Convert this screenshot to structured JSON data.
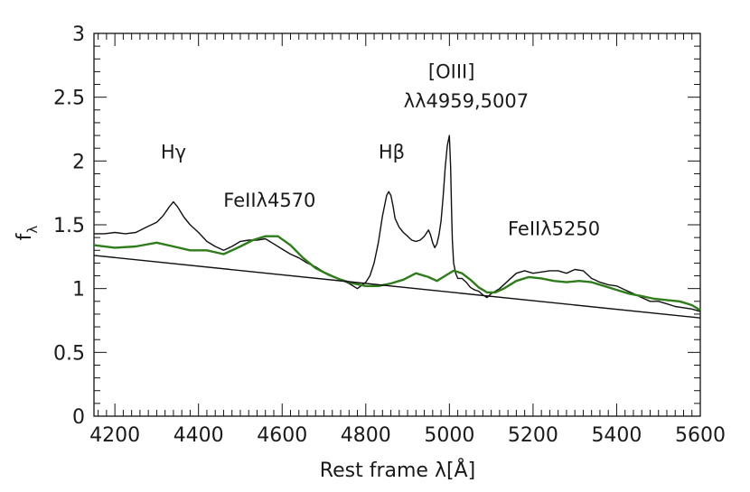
{
  "chart_data": {
    "type": "line",
    "xlabel": "Rest frame λ[Å]",
    "ylabel": "f",
    "ylabel_sub": "λ",
    "xlim": [
      4150,
      5600
    ],
    "ylim": [
      0,
      3
    ],
    "x_ticks": [
      4200,
      4400,
      4600,
      4800,
      5000,
      5200,
      5400,
      5600
    ],
    "y_ticks": [
      0,
      0.5,
      1,
      1.5,
      2,
      2.5,
      3
    ],
    "y_tick_labels": [
      "0",
      "0.5",
      "1",
      "1.5",
      "2",
      "2.5",
      "3"
    ],
    "grid": false,
    "annotations": [
      {
        "text": "Hγ",
        "x": 4340,
        "y": 2.02
      },
      {
        "text": "FeIIλ4570",
        "x": 4570,
        "y": 1.64
      },
      {
        "text": "Hβ",
        "x": 4862,
        "y": 2.02
      },
      {
        "text": "[OIII]",
        "x": 5005,
        "y": 2.65
      },
      {
        "text": "λλ4959,5007",
        "x": 5040,
        "y": 2.42
      },
      {
        "text": "FeIIλ5250",
        "x": 5250,
        "y": 1.42
      }
    ],
    "series": [
      {
        "color": "#111111",
        "x": [
          4150,
          4175,
          4200,
          4225,
          4250,
          4275,
          4300,
          4315,
          4330,
          4340,
          4350,
          4365,
          4380,
          4400,
          4420,
          4440,
          4460,
          4480,
          4500,
          4520,
          4540,
          4560,
          4580,
          4600,
          4620,
          4640,
          4660,
          4680,
          4700,
          4720,
          4740,
          4760,
          4780,
          4800,
          4810,
          4820,
          4830,
          4840,
          4850,
          4855,
          4860,
          4865,
          4870,
          4880,
          4890,
          4900,
          4910,
          4920,
          4930,
          4940,
          4950,
          4955,
          4960,
          4965,
          4970,
          4975,
          4980,
          4985,
          4990,
          4995,
          5000,
          5003,
          5005,
          5007,
          5010,
          5015,
          5020,
          5030,
          5040,
          5050,
          5060,
          5070,
          5080,
          5090,
          5100,
          5120,
          5140,
          5160,
          5180,
          5200,
          5220,
          5240,
          5260,
          5280,
          5300,
          5320,
          5340,
          5360,
          5380,
          5400,
          5420,
          5440,
          5460,
          5480,
          5500,
          5520,
          5540,
          5560,
          5580,
          5600
        ],
        "y": [
          1.43,
          1.43,
          1.44,
          1.43,
          1.44,
          1.48,
          1.52,
          1.57,
          1.64,
          1.68,
          1.64,
          1.56,
          1.5,
          1.44,
          1.37,
          1.33,
          1.3,
          1.33,
          1.37,
          1.38,
          1.38,
          1.39,
          1.35,
          1.31,
          1.27,
          1.24,
          1.2,
          1.17,
          1.13,
          1.1,
          1.07,
          1.04,
          1.0,
          1.05,
          1.1,
          1.2,
          1.36,
          1.57,
          1.73,
          1.76,
          1.73,
          1.65,
          1.55,
          1.48,
          1.44,
          1.41,
          1.38,
          1.37,
          1.38,
          1.41,
          1.46,
          1.42,
          1.36,
          1.32,
          1.35,
          1.42,
          1.53,
          1.72,
          1.95,
          2.12,
          2.2,
          1.95,
          1.62,
          1.38,
          1.2,
          1.12,
          1.08,
          1.08,
          1.05,
          1.01,
          0.99,
          0.98,
          0.95,
          0.93,
          0.96,
          1.0,
          1.06,
          1.12,
          1.14,
          1.12,
          1.13,
          1.14,
          1.14,
          1.12,
          1.15,
          1.14,
          1.08,
          1.05,
          1.03,
          1.02,
          0.99,
          0.96,
          0.93,
          0.9,
          0.9,
          0.88,
          0.86,
          0.85,
          0.84,
          0.82
        ]
      },
      {
        "color": "#2e7d1a",
        "x": [
          4150,
          4200,
          4250,
          4300,
          4340,
          4380,
          4420,
          4460,
          4500,
          4530,
          4560,
          4590,
          4620,
          4650,
          4680,
          4710,
          4740,
          4770,
          4800,
          4830,
          4860,
          4890,
          4920,
          4950,
          4970,
          4990,
          5010,
          5030,
          5050,
          5070,
          5090,
          5110,
          5130,
          5160,
          5190,
          5220,
          5250,
          5280,
          5310,
          5340,
          5370,
          5400,
          5430,
          5460,
          5490,
          5520,
          5550,
          5580,
          5600
        ],
        "y": [
          1.34,
          1.32,
          1.33,
          1.36,
          1.33,
          1.3,
          1.3,
          1.27,
          1.33,
          1.38,
          1.41,
          1.41,
          1.34,
          1.24,
          1.16,
          1.11,
          1.07,
          1.04,
          1.02,
          1.02,
          1.04,
          1.07,
          1.12,
          1.09,
          1.06,
          1.1,
          1.14,
          1.12,
          1.07,
          1.01,
          0.97,
          0.97,
          1.0,
          1.06,
          1.09,
          1.08,
          1.06,
          1.05,
          1.06,
          1.05,
          1.02,
          0.99,
          0.96,
          0.94,
          0.92,
          0.91,
          0.9,
          0.87,
          0.83
        ]
      },
      {
        "color": "#111111",
        "x": [
          4150,
          5600
        ],
        "y": [
          1.26,
          0.77
        ]
      }
    ]
  }
}
